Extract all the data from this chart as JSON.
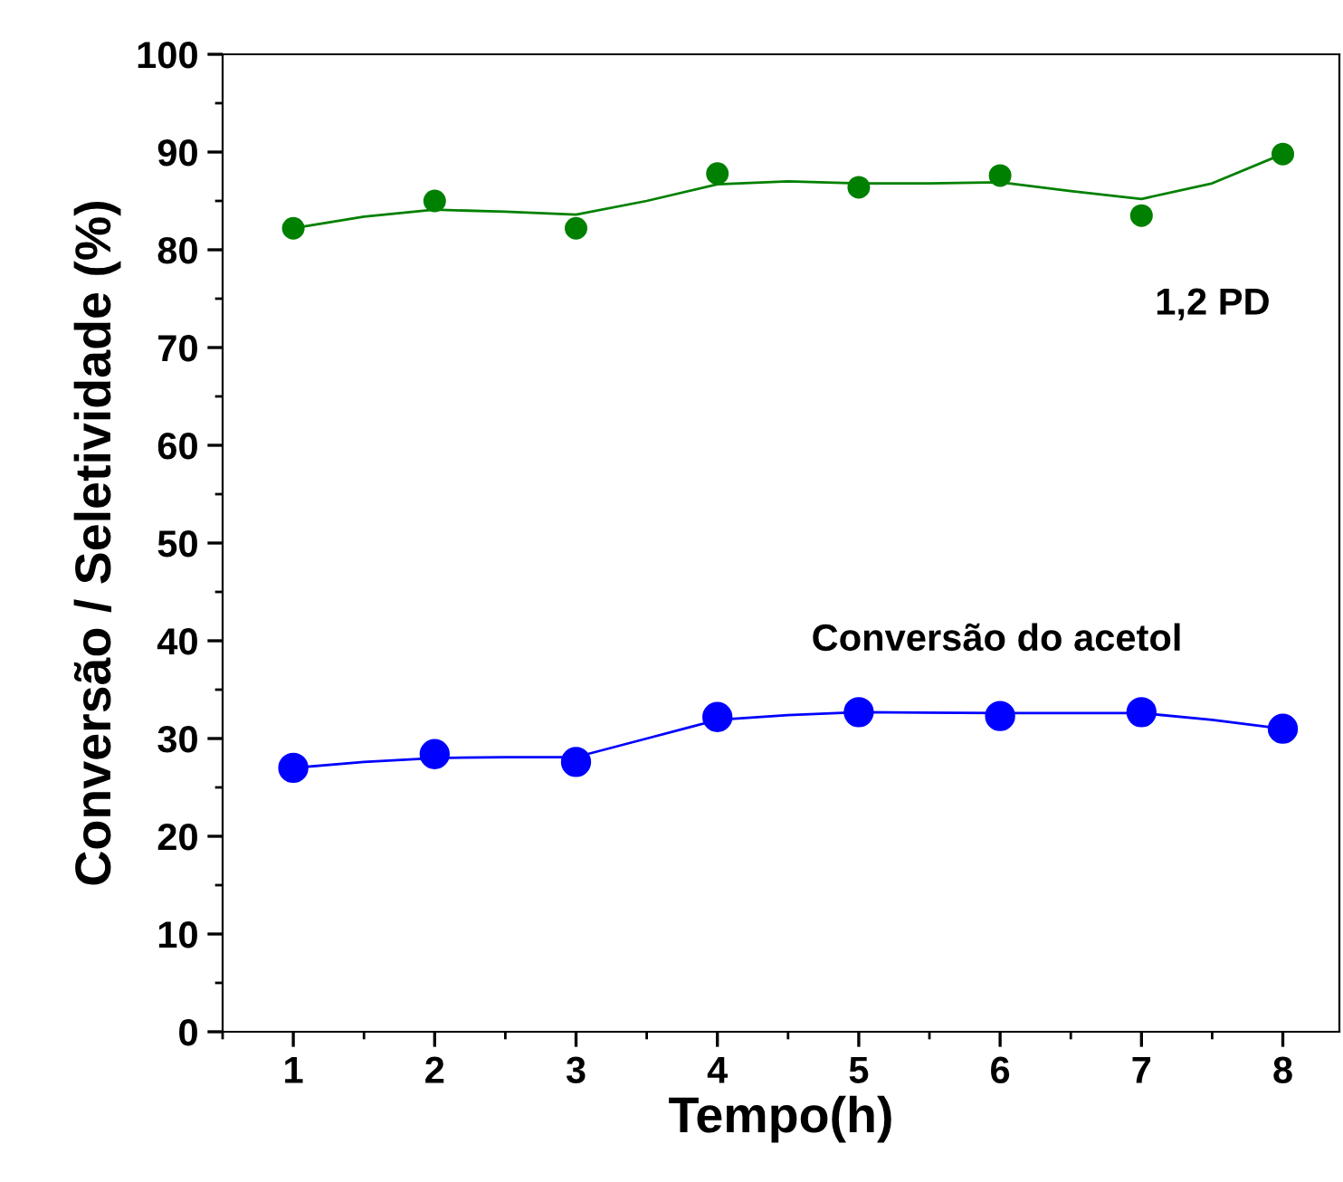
{
  "chart_data": {
    "type": "scatter",
    "xlabel": "Tempo(h)",
    "ylabel": "Conversão / Seletividade (%)",
    "x": [
      1,
      2,
      3,
      4,
      5,
      6,
      7,
      8
    ],
    "xlim": [
      0.5,
      8.4
    ],
    "xticks": [
      1,
      2,
      3,
      4,
      5,
      6,
      7,
      8
    ],
    "ylim": [
      0,
      100
    ],
    "yticks": [
      0,
      10,
      20,
      30,
      40,
      50,
      60,
      70,
      80,
      90,
      100
    ],
    "grid": false,
    "marker": "circle",
    "series": [
      {
        "name": "1,2 PD",
        "color": "#008000",
        "values": [
          82.2,
          85.0,
          82.2,
          87.8,
          86.4,
          87.6,
          83.5,
          89.8
        ]
      },
      {
        "name": "Conversão do acetol",
        "color": "#0000ff",
        "values": [
          27.0,
          28.4,
          27.6,
          32.2,
          32.7,
          32.3,
          32.7,
          31.0
        ]
      },
      {
        "type": "line",
        "marker": "none",
        "color": "#008000",
        "x": [
          1,
          1.5,
          2,
          2.5,
          3,
          3.5,
          4,
          4.5,
          5,
          5.5,
          6,
          6.5,
          7,
          7.5,
          8
        ],
        "values": [
          82.2,
          83.4,
          84.1,
          83.9,
          83.6,
          85.0,
          86.7,
          87.0,
          86.8,
          86.8,
          86.9,
          86.0,
          85.2,
          86.8,
          89.8
        ]
      },
      {
        "type": "line",
        "marker": "none",
        "color": "#0000ff",
        "x": [
          1,
          1.5,
          2,
          2.5,
          3,
          3.5,
          4,
          4.5,
          5,
          6,
          7,
          7.5,
          8
        ],
        "values": [
          27.0,
          27.6,
          28.0,
          28.1,
          28.1,
          30.0,
          31.9,
          32.4,
          32.7,
          32.6,
          32.6,
          31.9,
          31.0
        ]
      }
    ]
  }
}
